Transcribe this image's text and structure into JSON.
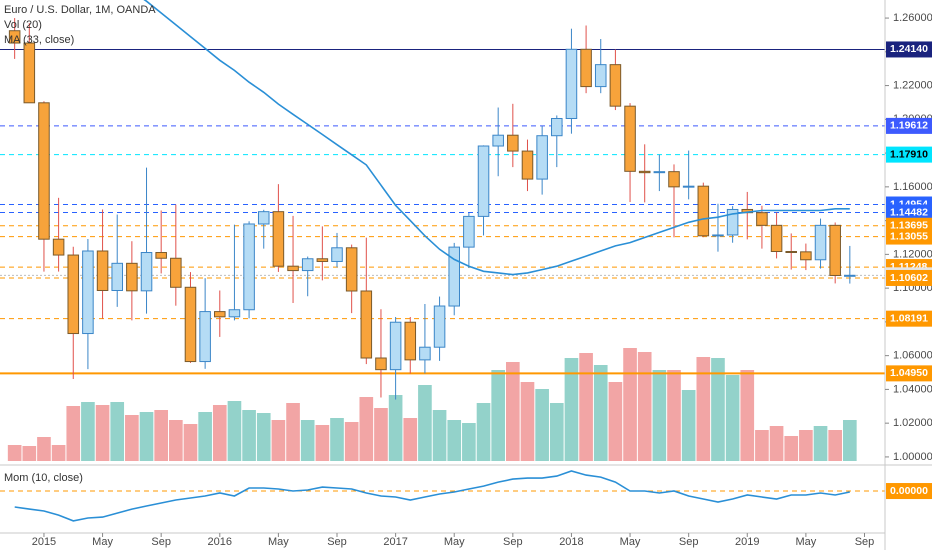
{
  "chart_data": {
    "type": "candlestick",
    "title": "Euro / U.S. Dollar, 1M, OANDA",
    "xlim": [
      -1,
      59.4
    ],
    "xticks": [
      {
        "value": 2,
        "label": "2015"
      },
      {
        "value": 6,
        "label": "May"
      },
      {
        "value": 10,
        "label": "Sep"
      },
      {
        "value": 14,
        "label": "2016"
      },
      {
        "value": 18,
        "label": "May"
      },
      {
        "value": 22,
        "label": "Sep"
      },
      {
        "value": 26,
        "label": "2017"
      },
      {
        "value": 30,
        "label": "May"
      },
      {
        "value": 34,
        "label": "Sep"
      },
      {
        "value": 38,
        "label": "2018"
      },
      {
        "value": 42,
        "label": "May"
      },
      {
        "value": 46,
        "label": "Sep"
      },
      {
        "value": 50,
        "label": "2019"
      },
      {
        "value": 54,
        "label": "May"
      },
      {
        "value": 58,
        "label": "Sep"
      }
    ],
    "ylim": [
      0.9964,
      1.2707
    ],
    "yticks": [
      {
        "value": 1.26,
        "label": "1.26000"
      },
      {
        "value": 1.24,
        "label": "1.24000"
      },
      {
        "value": 1.22,
        "label": "1.22000"
      },
      {
        "value": 1.2,
        "label": "1.20000"
      },
      {
        "value": 1.18,
        "label": "1.18000"
      },
      {
        "value": 1.16,
        "label": "1.16000"
      },
      {
        "value": 1.14,
        "label": "1.14000"
      },
      {
        "value": 1.12,
        "label": "1.12000"
      },
      {
        "value": 1.1,
        "label": "1.10000"
      },
      {
        "value": 1.08,
        "label": "1.08000"
      },
      {
        "value": 1.06,
        "label": "1.06000"
      },
      {
        "value": 1.04,
        "label": "1.04000"
      },
      {
        "value": 1.02,
        "label": "1.02000"
      },
      {
        "value": 1.0,
        "label": "1.00000"
      }
    ],
    "up_color": "#b5dcf5",
    "up_border": "#3b86c8",
    "down_color": "#f7a33b",
    "down_border": "#7a5a2c",
    "down_wick": "#e0504a",
    "open": [
      1.2525,
      1.2452,
      1.2098,
      1.129,
      1.1196,
      1.0731,
      1.122,
      1.0986,
      1.1147,
      1.0984,
      1.1211,
      1.1177,
      1.1005,
      1.0565,
      1.0861,
      1.083,
      1.0872,
      1.138,
      1.1453,
      1.113,
      1.1104,
      1.1174,
      1.1158,
      1.1239,
      1.0983,
      1.0586,
      1.0517,
      1.0798,
      1.0575,
      1.065,
      1.0894,
      1.1243,
      1.1425,
      1.1842,
      1.1906,
      1.1812,
      1.1646,
      1.1903,
      1.2005,
      1.2415,
      1.2194,
      1.2324,
      1.2078,
      1.1692,
      1.1684,
      1.169,
      1.16,
      1.1604,
      1.131,
      1.1315,
      1.1466,
      1.1447,
      1.1372,
      1.1217,
      1.1215,
      1.1168,
      1.1372,
      1.1075
    ],
    "high": [
      1.26,
      1.257,
      1.2107,
      1.1535,
      1.1245,
      1.1291,
      1.1466,
      1.1436,
      1.1278,
      1.1714,
      1.146,
      1.1495,
      1.1095,
      1.1059,
      1.0986,
      1.1376,
      1.1396,
      1.1464,
      1.1616,
      1.1428,
      1.1187,
      1.1366,
      1.1327,
      1.1258,
      1.1299,
      1.0875,
      1.0829,
      1.0829,
      1.0906,
      1.095,
      1.1268,
      1.1446,
      1.1846,
      1.207,
      1.2092,
      1.188,
      1.1961,
      1.2023,
      1.2537,
      1.2556,
      1.2476,
      1.2414,
      1.2096,
      1.1852,
      1.1791,
      1.1733,
      1.1815,
      1.1625,
      1.15,
      1.1486,
      1.157,
      1.1488,
      1.1448,
      1.1324,
      1.1264,
      1.1412,
      1.1389,
      1.125
    ],
    "low": [
      1.2358,
      1.2098,
      1.1098,
      1.1098,
      1.0462,
      1.052,
      1.0819,
      1.0889,
      1.0809,
      1.0849,
      1.1087,
      1.0896,
      1.0557,
      1.0522,
      1.0711,
      1.0809,
      1.0821,
      1.1234,
      1.1096,
      1.0912,
      1.0952,
      1.1046,
      1.1123,
      1.0852,
      1.055,
      1.0352,
      1.034,
      1.0494,
      1.0495,
      1.0569,
      1.0839,
      1.1119,
      1.1312,
      1.1663,
      1.1717,
      1.1575,
      1.1554,
      1.1717,
      1.1915,
      1.2155,
      1.2155,
      1.2055,
      1.151,
      1.1508,
      1.1575,
      1.1301,
      1.1526,
      1.1302,
      1.1216,
      1.1269,
      1.1289,
      1.1234,
      1.1176,
      1.111,
      1.1107,
      1.1116,
      1.1028,
      1.1027
    ],
    "close": [
      1.2452,
      1.2098,
      1.129,
      1.1196,
      1.0731,
      1.122,
      1.0986,
      1.1147,
      1.0984,
      1.1211,
      1.1177,
      1.1005,
      1.0565,
      1.0861,
      1.083,
      1.0872,
      1.138,
      1.1453,
      1.113,
      1.1104,
      1.1174,
      1.1158,
      1.1239,
      1.0983,
      1.0586,
      1.0517,
      1.0798,
      1.0575,
      1.065,
      1.0894,
      1.1243,
      1.1425,
      1.1842,
      1.1906,
      1.1812,
      1.1646,
      1.1903,
      1.2005,
      1.2415,
      1.2194,
      1.2324,
      1.2078,
      1.1692,
      1.1684,
      1.169,
      1.16,
      1.1604,
      1.131,
      1.1315,
      1.1466,
      1.1447,
      1.1372,
      1.1217,
      1.1215,
      1.1168,
      1.1372,
      1.1075,
      1.1076
    ],
    "volume": {
      "name": "Vol (20)",
      "up_color": "#93d2ca",
      "down_color": "#f2a5a5",
      "values": [
        16,
        15,
        24,
        16,
        55,
        59,
        56,
        59,
        46,
        49,
        51,
        41,
        37,
        49,
        56,
        60,
        51,
        48,
        41,
        58,
        41,
        36,
        43,
        39,
        64,
        53,
        66,
        43,
        76,
        51,
        41,
        38,
        58,
        91,
        99,
        79,
        72,
        58,
        103,
        108,
        96,
        79,
        113,
        109,
        91,
        91,
        71,
        104,
        103,
        86,
        91,
        31,
        35,
        25,
        31,
        35,
        31,
        41
      ]
    },
    "ma": {
      "name": "MA (33, close)",
      "color": "#2a8fd6",
      "values": [
        1.33,
        1.323,
        1.316,
        1.308,
        1.301,
        1.294,
        1.288,
        1.282,
        1.276,
        1.27,
        1.263,
        1.256,
        1.249,
        1.242,
        1.235,
        1.229,
        1.222,
        1.216,
        1.209,
        1.203,
        1.197,
        1.191,
        1.185,
        1.179,
        1.173,
        1.161,
        1.149,
        1.14,
        1.131,
        1.123,
        1.117,
        1.113,
        1.11,
        1.109,
        1.108,
        1.109,
        1.111,
        1.113,
        1.116,
        1.119,
        1.122,
        1.125,
        1.127,
        1.13,
        1.133,
        1.136,
        1.139,
        1.141,
        1.142,
        1.144,
        1.145,
        1.146,
        1.146,
        1.146,
        1.146,
        1.146,
        1.147,
        1.147
      ]
    },
    "levels": [
      {
        "value": 1.2414,
        "label": "1.24140",
        "color": "#1a237e",
        "text_color": "#ffffff",
        "style": "solid"
      },
      {
        "value": 1.19612,
        "label": "1.19612",
        "color": "#3d5afe",
        "text_color": "#ffffff",
        "style": "dashed"
      },
      {
        "value": 1.1791,
        "label": "1.17910",
        "color": "#00e5ff",
        "text_color": "#000000",
        "style": "dashed"
      },
      {
        "value": 1.14954,
        "label": "1.14954",
        "color": "#2962ff",
        "text_color": "#ffffff",
        "style": "dashed"
      },
      {
        "value": 1.14482,
        "label": "1.14482",
        "color": "#2962ff",
        "text_color": "#ffffff",
        "style": "dashed"
      },
      {
        "value": 1.13695,
        "label": "1.13695",
        "color": "#ff9800",
        "text_color": "#ffffff",
        "style": "dashed"
      },
      {
        "value": 1.13055,
        "label": "1.13055",
        "color": "#ff9800",
        "text_color": "#ffffff",
        "style": "dashed"
      },
      {
        "value": 1.11248,
        "label": "1.11248",
        "color": "#ff9800",
        "text_color": "#ffffff",
        "style": "dashed"
      },
      {
        "value": 1.10758,
        "label": "1.10758",
        "color": "#bdbdbd",
        "text_color": "#000000",
        "style": "dotted"
      },
      {
        "value": 1.10602,
        "label": "1.10602",
        "color": "#ff9800",
        "text_color": "#ffffff",
        "style": "dashed"
      },
      {
        "value": 1.08191,
        "label": "1.08191",
        "color": "#ff9800",
        "text_color": "#ffffff",
        "style": "dashed"
      },
      {
        "value": 1.0495,
        "label": "1.04950",
        "color": "#ff9800",
        "text_color": "#ffffff",
        "style": "thick"
      }
    ],
    "momentum": {
      "name": "Mom (10, close)",
      "color": "#2a8fd6",
      "ylim": [
        -0.37,
        0.19
      ],
      "values": [
        -0.144,
        -0.163,
        -0.18,
        -0.217,
        -0.27,
        -0.244,
        -0.235,
        -0.199,
        -0.163,
        -0.135,
        -0.108,
        -0.081,
        -0.063,
        -0.045,
        -0.018,
        -0.045,
        0.027,
        0.027,
        0.018,
        0,
        0.009,
        0.036,
        0.027,
        0.018,
        -0.018,
        -0.045,
        -0.054,
        -0.081,
        -0.054,
        -0.027,
        -0.009,
        0.018,
        0.045,
        0.081,
        0.108,
        0.117,
        0.117,
        0.135,
        0.181,
        0.144,
        0.126,
        0.081,
        0,
        0,
        -0.018,
        0,
        -0.045,
        -0.072,
        -0.099,
        -0.072,
        -0.036,
        -0.054,
        -0.072,
        -0.036,
        -0.036,
        -0.018,
        -0.036,
        -0.009
      ],
      "levels": [
        {
          "value": 0,
          "label": "0.00000",
          "color": "#ff9800",
          "text_color": "#ffffff",
          "style": "dashed"
        }
      ]
    }
  }
}
